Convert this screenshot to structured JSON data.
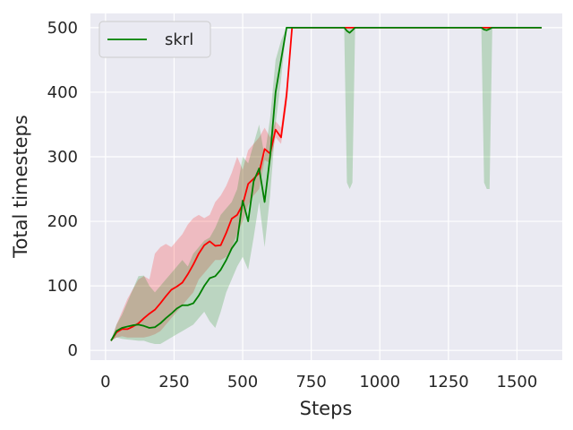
{
  "chart_data": {
    "type": "line",
    "xlabel": "Steps",
    "ylabel": "Total timesteps",
    "xlim": [
      -55,
      1665
    ],
    "ylim": [
      -15,
      522
    ],
    "xticks": [
      0,
      250,
      500,
      750,
      1000,
      1250,
      1500
    ],
    "yticks": [
      0,
      100,
      200,
      300,
      400,
      500
    ],
    "grid": true,
    "legend": {
      "placement": "top-left",
      "entries": [
        "skrl"
      ]
    },
    "colors": {
      "background": "#eaeaf2",
      "grid": "#ffffff",
      "red": "#ff0000",
      "green": "#008000"
    },
    "series": [
      {
        "color": "#ff0000",
        "x": [
          20,
          40,
          60,
          80,
          100,
          120,
          140,
          160,
          180,
          200,
          220,
          240,
          260,
          280,
          300,
          320,
          340,
          360,
          380,
          400,
          420,
          440,
          460,
          480,
          500,
          520,
          540,
          560,
          580,
          600,
          620,
          640,
          660,
          680,
          700,
          750,
          800,
          850,
          880,
          890,
          900,
          910,
          920,
          950,
          1000,
          1100,
          1200,
          1300,
          1370,
          1380,
          1400,
          1420,
          1450,
          1500,
          1590
        ],
        "mean": [
          15,
          28,
          33,
          33,
          37,
          42,
          50,
          57,
          63,
          73,
          84,
          94,
          99,
          105,
          118,
          133,
          150,
          163,
          169,
          162,
          163,
          182,
          204,
          210,
          226,
          258,
          266,
          275,
          312,
          305,
          342,
          330,
          395,
          500,
          500,
          500,
          500,
          500,
          500,
          500,
          500,
          500,
          500,
          500,
          500,
          500,
          500,
          500,
          500,
          500,
          500,
          500,
          500,
          500,
          500
        ],
        "lower": [
          15,
          20,
          22,
          20,
          20,
          20,
          20,
          22,
          25,
          30,
          40,
          50,
          60,
          70,
          80,
          90,
          110,
          120,
          130,
          140,
          140,
          145,
          160,
          180,
          200,
          225,
          240,
          250,
          295,
          290,
          330,
          320,
          380,
          500,
          500,
          500,
          500,
          500,
          500,
          500,
          500,
          500,
          500,
          500,
          500,
          500,
          500,
          500,
          500,
          500,
          500,
          500,
          500,
          500,
          500
        ],
        "upper": [
          15,
          40,
          60,
          80,
          95,
          110,
          115,
          110,
          150,
          160,
          165,
          160,
          170,
          180,
          195,
          205,
          210,
          205,
          210,
          230,
          240,
          255,
          275,
          300,
          280,
          310,
          320,
          330,
          345,
          330,
          355,
          345,
          410,
          500,
          500,
          500,
          500,
          500,
          500,
          500,
          500,
          500,
          500,
          500,
          500,
          500,
          500,
          500,
          500,
          500,
          500,
          500,
          500,
          500,
          500
        ]
      },
      {
        "name": "skrl",
        "color": "#008000",
        "x": [
          20,
          40,
          60,
          80,
          100,
          120,
          140,
          160,
          180,
          200,
          220,
          240,
          260,
          280,
          300,
          320,
          340,
          360,
          380,
          400,
          420,
          440,
          460,
          480,
          500,
          520,
          540,
          560,
          580,
          600,
          620,
          640,
          660,
          670,
          700,
          750,
          800,
          850,
          870,
          880,
          890,
          900,
          910,
          920,
          950,
          1000,
          1100,
          1200,
          1300,
          1370,
          1380,
          1390,
          1400,
          1410,
          1420,
          1450,
          1500,
          1590
        ],
        "mean": [
          15,
          30,
          35,
          37,
          39,
          40,
          38,
          35,
          36,
          42,
          50,
          57,
          65,
          70,
          70,
          73,
          85,
          100,
          112,
          115,
          125,
          140,
          158,
          170,
          232,
          200,
          262,
          282,
          230,
          300,
          400,
          450,
          500,
          500,
          500,
          500,
          500,
          500,
          500,
          495,
          492,
          496,
          500,
          500,
          500,
          500,
          500,
          500,
          500,
          500,
          497,
          496,
          498,
          500,
          500,
          500,
          500,
          500
        ],
        "lower": [
          15,
          20,
          18,
          17,
          16,
          15,
          15,
          12,
          10,
          10,
          15,
          20,
          25,
          30,
          35,
          40,
          50,
          60,
          45,
          35,
          60,
          90,
          110,
          130,
          145,
          125,
          175,
          230,
          160,
          240,
          350,
          420,
          500,
          500,
          500,
          500,
          500,
          500,
          500,
          260,
          250,
          260,
          500,
          500,
          500,
          500,
          500,
          500,
          500,
          500,
          260,
          250,
          250,
          500,
          500,
          500,
          500,
          500
        ],
        "upper": [
          15,
          40,
          55,
          75,
          95,
          115,
          116,
          100,
          90,
          100,
          110,
          120,
          130,
          140,
          130,
          150,
          160,
          170,
          175,
          190,
          210,
          220,
          230,
          250,
          300,
          290,
          320,
          350,
          300,
          360,
          450,
          480,
          500,
          500,
          500,
          500,
          500,
          500,
          500,
          500,
          500,
          500,
          500,
          500,
          500,
          500,
          500,
          500,
          500,
          500,
          500,
          500,
          500,
          500,
          500,
          500,
          500,
          500
        ]
      }
    ]
  }
}
